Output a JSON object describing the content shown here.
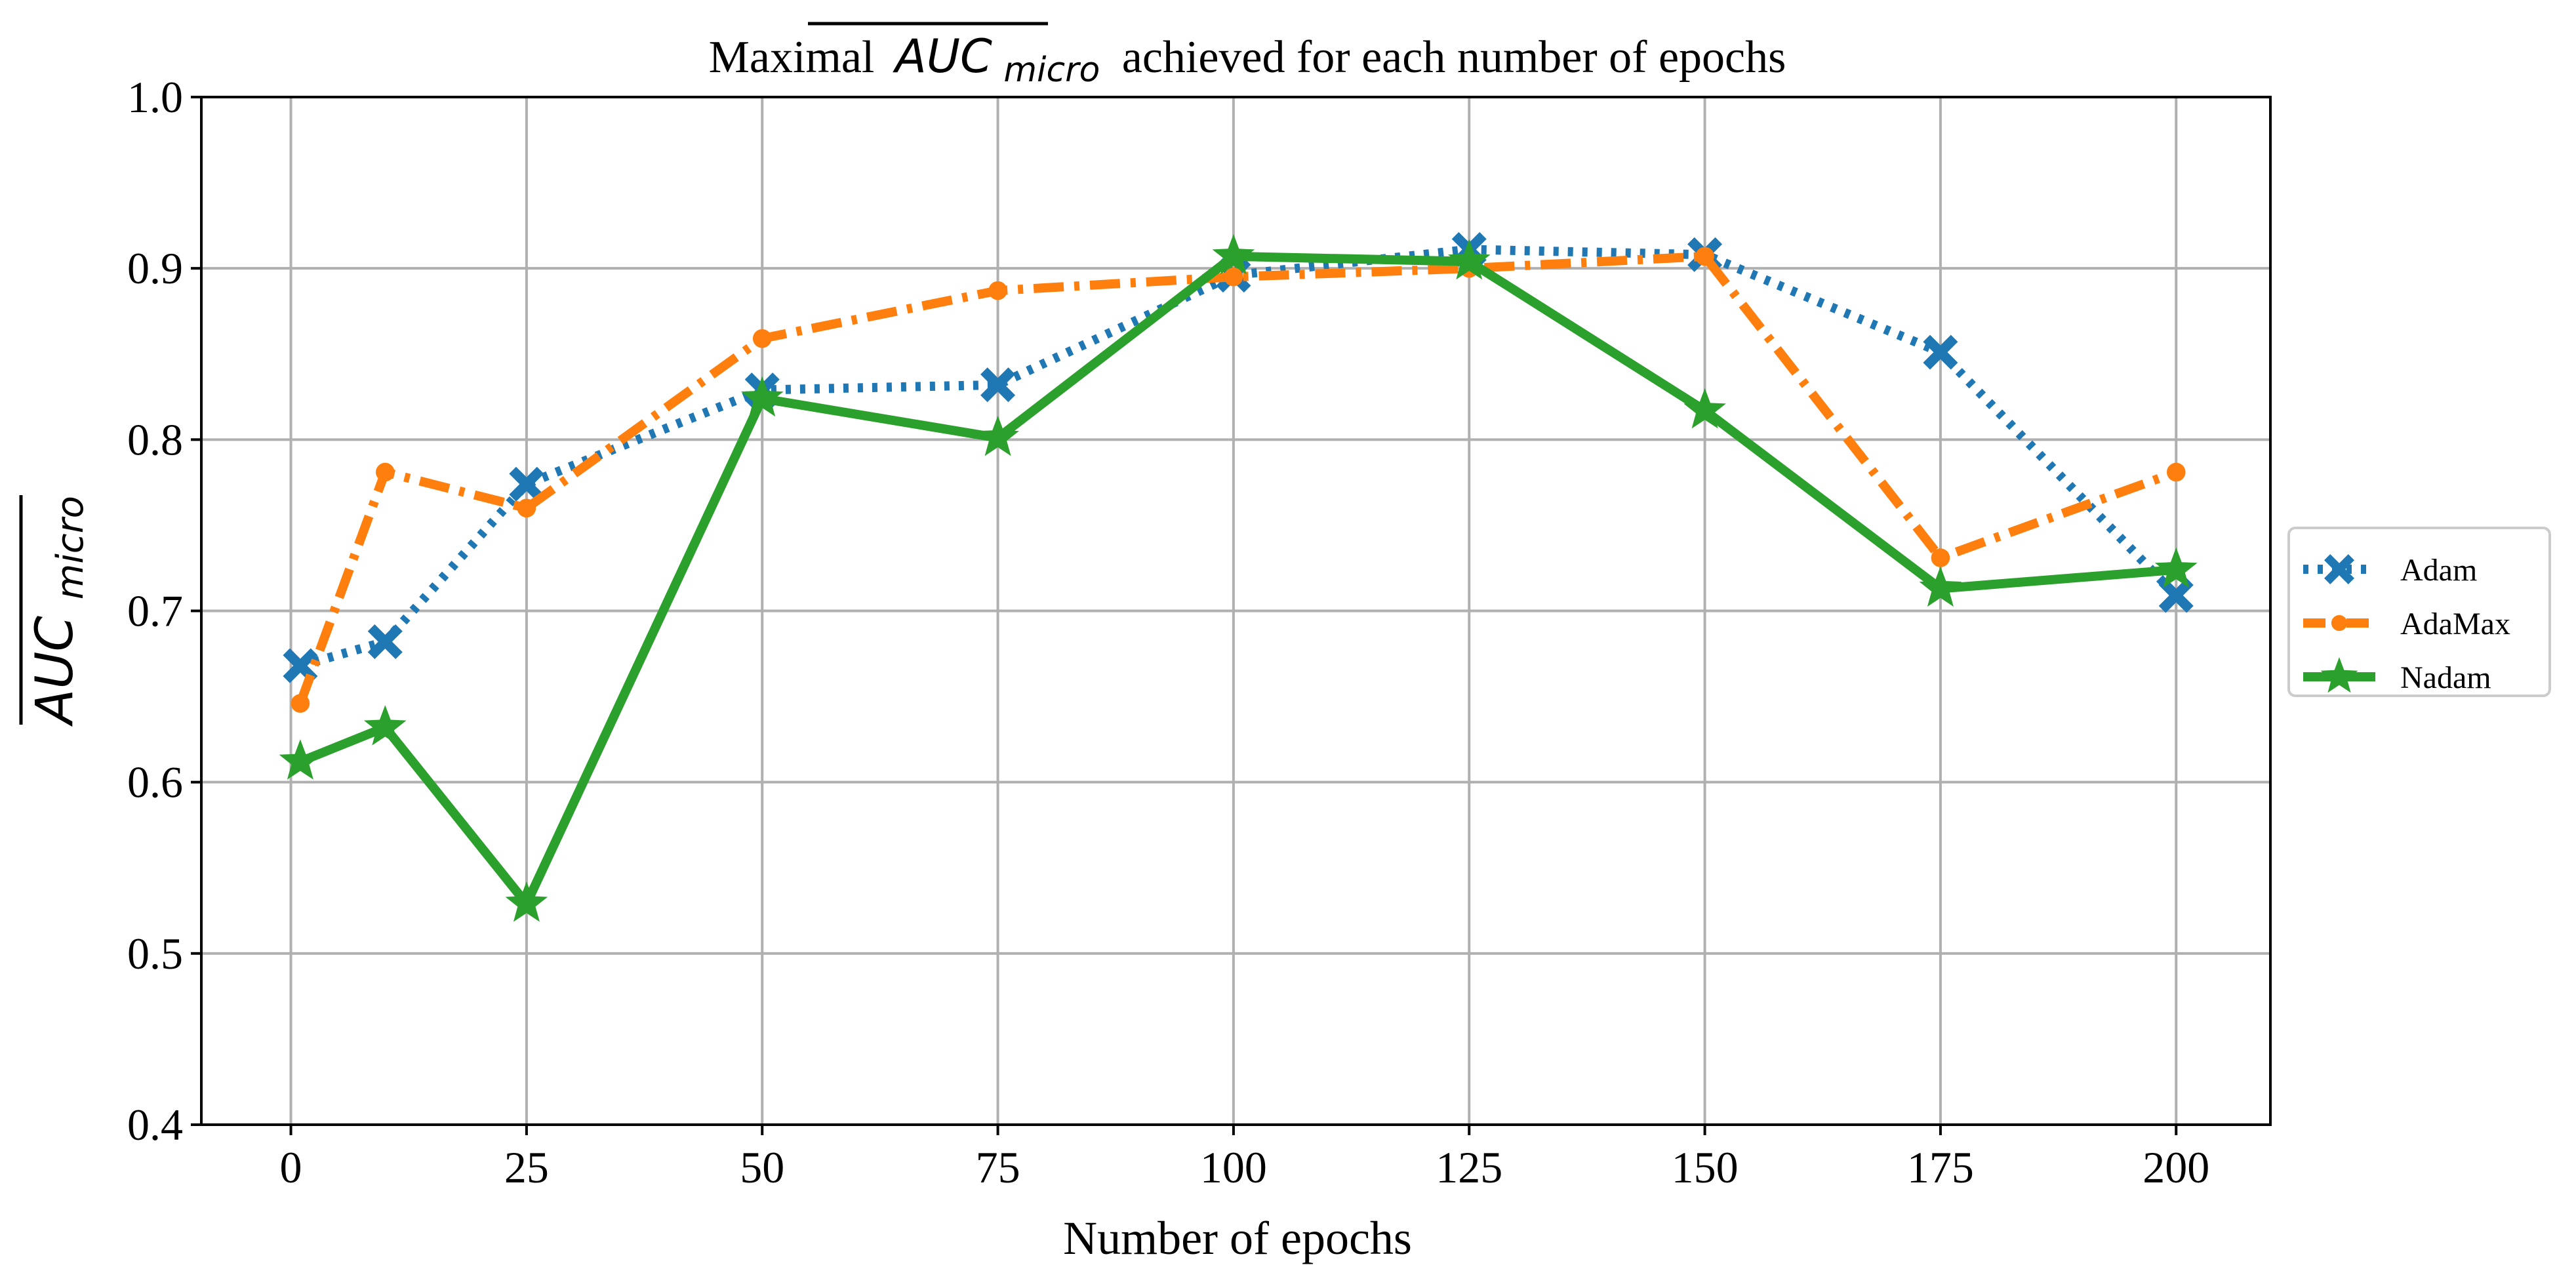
{
  "chart_data": {
    "type": "line",
    "title": {
      "prefix": "Maximal",
      "math_main": "AUC",
      "math_sub": "micro",
      "suffix": "achieved for each number of epochs"
    },
    "xlabel": "Number of epochs",
    "ylabel": {
      "math_main": "AUC",
      "math_sub": "micro"
    },
    "xlim": [
      -9.5,
      210
    ],
    "ylim": [
      0.4,
      1.0
    ],
    "xticks": [
      0,
      25,
      50,
      75,
      100,
      125,
      150,
      175,
      200
    ],
    "xtick_labels": [
      "0",
      "25",
      "50",
      "75",
      "100",
      "125",
      "150",
      "175",
      "200"
    ],
    "yticks": [
      0.4,
      0.5,
      0.6,
      0.7,
      0.8,
      0.9,
      1.0
    ],
    "ytick_labels": [
      "0.4",
      "0.5",
      "0.6",
      "0.7",
      "0.8",
      "0.9",
      "1.0"
    ],
    "grid": true,
    "legend_position": "center-right, outside plot",
    "x": [
      1,
      10,
      25,
      50,
      75,
      100,
      125,
      150,
      175,
      200
    ],
    "series": [
      {
        "name": "Adam",
        "values": [
          0.668,
          0.682,
          0.774,
          0.829,
          0.832,
          0.896,
          0.911,
          0.908,
          0.851,
          0.709
        ],
        "color": "#1f77b4",
        "linestyle": "dotted",
        "marker": "X"
      },
      {
        "name": "AdaMax",
        "values": [
          0.646,
          0.781,
          0.76,
          0.859,
          0.887,
          0.895,
          0.9,
          0.907,
          0.731,
          0.781
        ],
        "color": "#ff7f0e",
        "linestyle": "dashdot",
        "marker": "circle"
      },
      {
        "name": "Nadam",
        "values": [
          0.612,
          0.632,
          0.529,
          0.824,
          0.801,
          0.907,
          0.904,
          0.817,
          0.713,
          0.724
        ],
        "color": "#2ca02c",
        "linestyle": "solid",
        "marker": "star"
      }
    ],
    "grid_color": "#b0b0b0",
    "axis_color": "#000000"
  }
}
